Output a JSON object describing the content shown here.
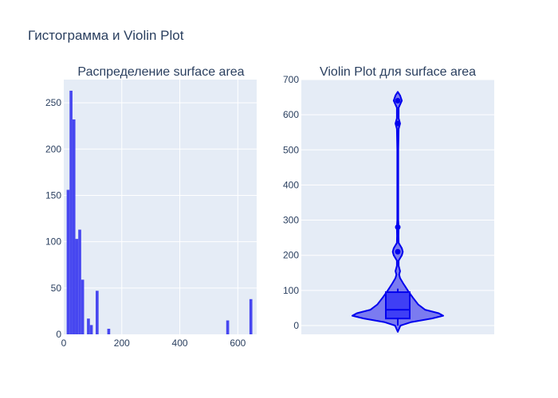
{
  "title": "Гистограмма и Violin Plot",
  "colors": {
    "bar": "#4747f0",
    "violin_fill": "#6f6ff0",
    "violin_line": "#0000ee",
    "box_fill": "#3f3ff5",
    "plot_bg": "#e5ecf6",
    "text": "#2a3f5f"
  },
  "chart_data": [
    {
      "type": "bar",
      "title": "Распределение surface area",
      "xlabel": "",
      "ylabel": "",
      "bin_size": 10,
      "bin_starts": [
        0,
        10,
        20,
        30,
        40,
        50,
        60,
        70,
        80,
        90,
        100,
        110,
        120,
        130,
        140,
        150,
        160,
        170,
        180,
        190,
        200,
        210,
        220,
        230,
        240,
        250,
        260,
        270,
        280,
        290,
        300,
        310,
        320,
        330,
        340,
        350,
        360,
        370,
        380,
        390,
        400,
        410,
        420,
        430,
        440,
        450,
        460,
        470,
        480,
        490,
        500,
        510,
        520,
        530,
        540,
        550,
        560,
        570,
        580,
        590,
        600,
        610,
        620,
        630,
        640,
        650
      ],
      "values": [
        0,
        156,
        263,
        232,
        103,
        113,
        59,
        0,
        17,
        10,
        0,
        47,
        0,
        0,
        0,
        6,
        0,
        0,
        0,
        0,
        0,
        0,
        0,
        0,
        0,
        0,
        0,
        0,
        0,
        0,
        0,
        0,
        0,
        0,
        0,
        0,
        0,
        0,
        0,
        0,
        0,
        0,
        0,
        0,
        0,
        0,
        0,
        0,
        0,
        0,
        0,
        0,
        0,
        0,
        0,
        0,
        15,
        0,
        0,
        0,
        0,
        0,
        0,
        0,
        38,
        0
      ],
      "xlim": [
        0,
        665
      ],
      "ylim": [
        0,
        275
      ],
      "x_ticks": [
        "0",
        "200",
        "400",
        "600"
      ],
      "x_tick_values": [
        0,
        200,
        400,
        600
      ],
      "y_ticks": [
        "0",
        "50",
        "100",
        "150",
        "200",
        "250"
      ],
      "y_tick_values": [
        0,
        50,
        100,
        150,
        200,
        250
      ],
      "grid": true
    },
    {
      "type": "violin",
      "title": "Violin Plot для surface area",
      "ylim": [
        -25,
        700
      ],
      "y_ticks": [
        "0",
        "100",
        "200",
        "300",
        "400",
        "500",
        "600",
        "700"
      ],
      "y_tick_values": [
        0,
        100,
        200,
        300,
        400,
        500,
        600,
        700
      ],
      "box": {
        "q1": 20,
        "median": 45,
        "q3": 95,
        "whisker_low": 0,
        "whisker_high": 105
      },
      "density_profile": [
        [
          -18,
          0
        ],
        [
          0,
          0.06
        ],
        [
          10,
          0.3
        ],
        [
          20,
          0.75
        ],
        [
          28,
          1.0
        ],
        [
          35,
          0.9
        ],
        [
          45,
          0.6
        ],
        [
          60,
          0.45
        ],
        [
          80,
          0.33
        ],
        [
          100,
          0.22
        ],
        [
          120,
          0.12
        ],
        [
          135,
          0.05
        ],
        [
          145,
          0.03
        ],
        [
          155,
          0.05
        ],
        [
          170,
          0.02
        ],
        [
          185,
          0.02
        ],
        [
          200,
          0.09
        ],
        [
          210,
          0.11
        ],
        [
          220,
          0.09
        ],
        [
          235,
          0.02
        ],
        [
          255,
          0.015
        ],
        [
          280,
          0.02
        ],
        [
          300,
          0.01
        ],
        [
          400,
          0.01
        ],
        [
          500,
          0.01
        ],
        [
          560,
          0.02
        ],
        [
          575,
          0.05
        ],
        [
          590,
          0.02
        ],
        [
          620,
          0.02
        ],
        [
          640,
          0.09
        ],
        [
          655,
          0.05
        ],
        [
          665,
          0
        ]
      ],
      "outliers": [
        210,
        280,
        575,
        640
      ],
      "grid": true
    }
  ]
}
